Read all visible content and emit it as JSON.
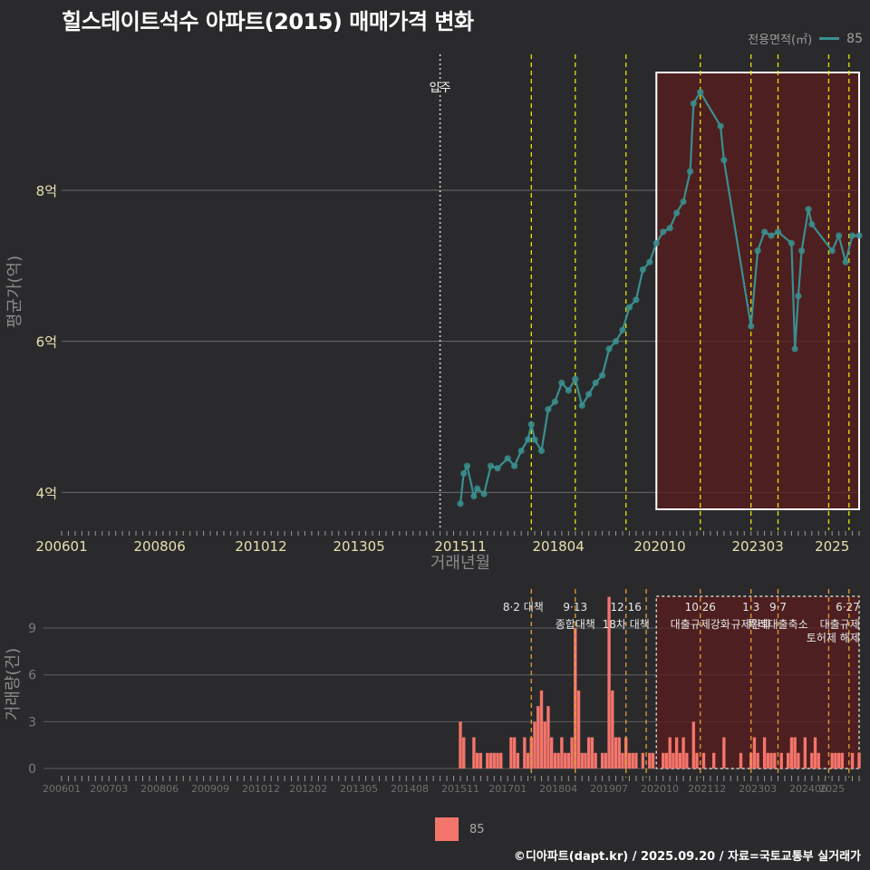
{
  "title": "힐스테이트석수 아파트(2015) 매매가격 변화",
  "legend": {
    "title": "전용면적(㎡)",
    "label": "85"
  },
  "bottom_legend": {
    "label": "85"
  },
  "credit": "©디아파트(dapt.kr) / 2025.09.20 / 자료=국토교통부 실거래가",
  "colors": {
    "background": "#2a2a2c",
    "line": "#3a8f8f",
    "bar": "#f4756b",
    "event": "#e6e600",
    "event_bottom": "#e3a12f",
    "highlight": "#5a1c1c"
  },
  "chart_data": [
    {
      "type": "line",
      "title": "",
      "xlabel": "거래년월",
      "ylabel": "평균가(억)",
      "x_ticks": [
        "200601",
        "200806",
        "201012",
        "201305",
        "201511",
        "201804",
        "202010",
        "202303",
        "2025"
      ],
      "y_ticks": [
        "4억",
        "6억",
        "8억"
      ],
      "ylim": [
        3.5,
        9.8
      ],
      "xlim": [
        "2006-01",
        "2025-09"
      ],
      "annotation": "입주",
      "annotation_date": "2015-05",
      "event_dates": [
        "2017-08",
        "2018-09",
        "2019-12",
        "2021-10",
        "2023-01",
        "2023-09",
        "2024-12",
        "2025-06"
      ],
      "highlight_range": [
        "2020-09",
        "2025-09"
      ],
      "series": [
        {
          "name": "85",
          "points": [
            [
              "2015-11",
              3.85
            ],
            [
              "2015-12",
              4.25
            ],
            [
              "2016-01",
              4.35
            ],
            [
              "2016-03",
              3.95
            ],
            [
              "2016-04",
              4.05
            ],
            [
              "2016-06",
              3.98
            ],
            [
              "2016-08",
              4.35
            ],
            [
              "2016-10",
              4.32
            ],
            [
              "2017-01",
              4.45
            ],
            [
              "2017-03",
              4.35
            ],
            [
              "2017-05",
              4.55
            ],
            [
              "2017-07",
              4.7
            ],
            [
              "2017-08",
              4.9
            ],
            [
              "2017-09",
              4.7
            ],
            [
              "2017-11",
              4.55
            ],
            [
              "2018-01",
              5.1
            ],
            [
              "2018-03",
              5.2
            ],
            [
              "2018-05",
              5.45
            ],
            [
              "2018-07",
              5.35
            ],
            [
              "2018-09",
              5.5
            ],
            [
              "2018-11",
              5.15
            ],
            [
              "2019-01",
              5.3
            ],
            [
              "2019-03",
              5.45
            ],
            [
              "2019-05",
              5.55
            ],
            [
              "2019-07",
              5.9
            ],
            [
              "2019-09",
              6.0
            ],
            [
              "2019-11",
              6.15
            ],
            [
              "2020-01",
              6.45
            ],
            [
              "2020-03",
              6.55
            ],
            [
              "2020-05",
              6.95
            ],
            [
              "2020-07",
              7.05
            ],
            [
              "2020-09",
              7.3
            ],
            [
              "2020-11",
              7.45
            ],
            [
              "2021-01",
              7.5
            ],
            [
              "2021-03",
              7.7
            ],
            [
              "2021-05",
              7.85
            ],
            [
              "2021-07",
              8.25
            ],
            [
              "2021-08",
              9.15
            ],
            [
              "2021-10",
              9.3
            ],
            [
              "2022-04",
              8.85
            ],
            [
              "2022-05",
              8.4
            ],
            [
              "2023-01",
              6.2
            ],
            [
              "2023-03",
              7.2
            ],
            [
              "2023-05",
              7.45
            ],
            [
              "2023-07",
              7.4
            ],
            [
              "2023-09",
              7.45
            ],
            [
              "2024-01",
              7.3
            ],
            [
              "2024-02",
              5.9
            ],
            [
              "2024-03",
              6.6
            ],
            [
              "2024-04",
              7.2
            ],
            [
              "2024-06",
              7.75
            ],
            [
              "2024-07",
              7.55
            ],
            [
              "2025-01",
              7.2
            ],
            [
              "2025-03",
              7.4
            ],
            [
              "2025-05",
              7.05
            ],
            [
              "2025-07",
              7.4
            ],
            [
              "2025-09",
              7.4
            ]
          ]
        }
      ]
    },
    {
      "type": "bar",
      "title": "",
      "xlabel": "",
      "ylabel": "거래량(건)",
      "x_ticks": [
        "200601",
        "200703",
        "200806",
        "200909",
        "201012",
        "201202",
        "201305",
        "201408",
        "201511",
        "201701",
        "201804",
        "201907",
        "202010",
        "202112",
        "202303",
        "202406",
        "2025"
      ],
      "y_ticks": [
        "0",
        "3",
        "6",
        "9"
      ],
      "ylim": [
        0,
        11.5
      ],
      "highlight_range": [
        "2020-09",
        "2025-09"
      ],
      "events": [
        {
          "date": "2017-08",
          "label": "8·2 대책"
        },
        {
          "date": "2018-09",
          "label": "9·13"
        },
        {
          "date": "2018-09",
          "label": "종합대책"
        },
        {
          "date": "2019-12",
          "label": "12·16"
        },
        {
          "date": "2019-12",
          "label": "18차 대책"
        },
        {
          "date": "2020-06",
          "label": ""
        },
        {
          "date": "2021-10",
          "label": "10·26"
        },
        {
          "date": "2021-10",
          "label": "대출규제강화"
        },
        {
          "date": "2023-01",
          "label": "1·3"
        },
        {
          "date": "2023-01",
          "label": "규제완화"
        },
        {
          "date": "2023-09",
          "label": "9·7"
        },
        {
          "date": "2023-09",
          "label": "특례대출축소"
        },
        {
          "date": "2024-12",
          "label": ""
        },
        {
          "date": "2025-06",
          "label": "6·27"
        },
        {
          "date": "2025-06",
          "label": "대출규제"
        },
        {
          "date": "2025-06",
          "label": "토허제 해제"
        }
      ],
      "series": [
        {
          "name": "85",
          "points": [
            [
              "2015-11",
              3
            ],
            [
              "2015-12",
              2
            ],
            [
              "2016-03",
              2
            ],
            [
              "2016-04",
              1
            ],
            [
              "2016-05",
              1
            ],
            [
              "2016-07",
              1
            ],
            [
              "2016-08",
              1
            ],
            [
              "2016-09",
              1
            ],
            [
              "2016-10",
              1
            ],
            [
              "2016-11",
              1
            ],
            [
              "2017-02",
              2
            ],
            [
              "2017-03",
              2
            ],
            [
              "2017-04",
              1
            ],
            [
              "2017-06",
              2
            ],
            [
              "2017-07",
              1
            ],
            [
              "2017-08",
              2
            ],
            [
              "2017-09",
              3
            ],
            [
              "2017-10",
              4
            ],
            [
              "2017-11",
              5
            ],
            [
              "2017-12",
              3
            ],
            [
              "2018-01",
              4
            ],
            [
              "2018-02",
              2
            ],
            [
              "2018-03",
              1
            ],
            [
              "2018-04",
              1
            ],
            [
              "2018-05",
              2
            ],
            [
              "2018-06",
              1
            ],
            [
              "2018-07",
              1
            ],
            [
              "2018-08",
              2
            ],
            [
              "2018-09",
              9
            ],
            [
              "2018-10",
              5
            ],
            [
              "2018-11",
              1
            ],
            [
              "2018-12",
              1
            ],
            [
              "2019-01",
              2
            ],
            [
              "2019-02",
              2
            ],
            [
              "2019-03",
              1
            ],
            [
              "2019-05",
              1
            ],
            [
              "2019-06",
              1
            ],
            [
              "2019-07",
              11
            ],
            [
              "2019-08",
              5
            ],
            [
              "2019-09",
              2
            ],
            [
              "2019-10",
              2
            ],
            [
              "2019-11",
              1
            ],
            [
              "2019-12",
              2
            ],
            [
              "2020-01",
              1
            ],
            [
              "2020-02",
              1
            ],
            [
              "2020-03",
              1
            ],
            [
              "2020-05",
              1
            ],
            [
              "2020-07",
              1
            ],
            [
              "2020-08",
              1
            ],
            [
              "2020-11",
              1
            ],
            [
              "2020-12",
              1
            ],
            [
              "2021-01",
              2
            ],
            [
              "2021-02",
              1
            ],
            [
              "2021-03",
              2
            ],
            [
              "2021-04",
              1
            ],
            [
              "2021-05",
              2
            ],
            [
              "2021-06",
              1
            ],
            [
              "2021-08",
              3
            ],
            [
              "2021-09",
              1
            ],
            [
              "2021-11",
              1
            ],
            [
              "2022-02",
              1
            ],
            [
              "2022-05",
              2
            ],
            [
              "2022-10",
              1
            ],
            [
              "2023-01",
              1
            ],
            [
              "2023-02",
              2
            ],
            [
              "2023-03",
              1
            ],
            [
              "2023-05",
              2
            ],
            [
              "2023-06",
              1
            ],
            [
              "2023-07",
              1
            ],
            [
              "2023-08",
              1
            ],
            [
              "2023-10",
              1
            ],
            [
              "2023-12",
              1
            ],
            [
              "2024-01",
              2
            ],
            [
              "2024-02",
              2
            ],
            [
              "2024-03",
              1
            ],
            [
              "2024-05",
              2
            ],
            [
              "2024-07",
              1
            ],
            [
              "2024-08",
              2
            ],
            [
              "2024-09",
              1
            ],
            [
              "2025-01",
              1
            ],
            [
              "2025-02",
              1
            ],
            [
              "2025-03",
              1
            ],
            [
              "2025-04",
              1
            ],
            [
              "2025-07",
              1
            ],
            [
              "2025-09",
              1
            ]
          ]
        }
      ]
    }
  ]
}
